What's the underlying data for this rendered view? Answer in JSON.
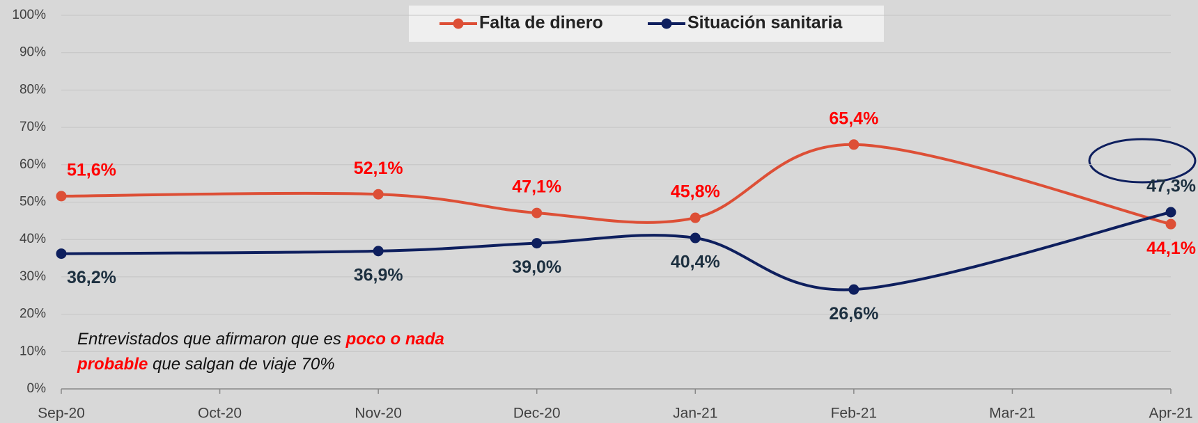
{
  "chart_data": {
    "type": "line",
    "xticks": [
      "Sep-20",
      "Oct-20",
      "Nov-20",
      "Dec-20",
      "Jan-21",
      "Feb-21",
      "Mar-21",
      "Apr-21"
    ],
    "x": [
      "Sep-20",
      "Nov-20",
      "Dec-20",
      "Jan-21",
      "Feb-21",
      "Apr-21"
    ],
    "series": [
      {
        "name": "Falta de dinero",
        "color": "#dd4f36",
        "label_color": "#ff0000",
        "values": [
          51.6,
          52.1,
          47.1,
          45.8,
          65.4,
          44.1
        ],
        "value_labels": [
          "51,6%",
          "52,1%",
          "47,1%",
          "45,8%",
          "65,4%",
          "44,1%"
        ]
      },
      {
        "name": "Situación sanitaria",
        "color": "#0e1f5e",
        "label_color": "#1d3040",
        "values": [
          36.2,
          36.9,
          39.0,
          40.4,
          26.6,
          47.3
        ],
        "value_labels": [
          "36,2%",
          "36,9%",
          "39,0%",
          "40,4%",
          "26,6%",
          "47,3%"
        ]
      }
    ],
    "ylim": [
      0,
      100
    ],
    "yticks": [
      {
        "value": 0,
        "label": "0%"
      },
      {
        "value": 10,
        "label": "10%"
      },
      {
        "value": 20,
        "label": "20%"
      },
      {
        "value": 30,
        "label": "30%"
      },
      {
        "value": 40,
        "label": "40%"
      },
      {
        "value": 50,
        "label": "50%"
      },
      {
        "value": 60,
        "label": "60%"
      },
      {
        "value": 70,
        "label": "70%"
      },
      {
        "value": 80,
        "label": "80%"
      },
      {
        "value": 90,
        "label": "90%"
      },
      {
        "value": 100,
        "label": "100%"
      }
    ],
    "grid": true,
    "legend": "top",
    "annotation": [
      "Entrevistados que afirmaron que es",
      "poco o nada probable",
      "que salgan de viaje 70%"
    ]
  }
}
